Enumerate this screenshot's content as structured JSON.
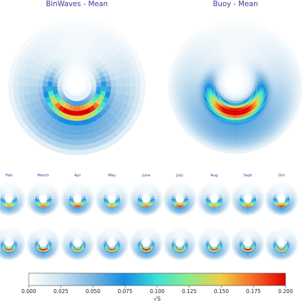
{
  "chart_data": {
    "type": "heatmap",
    "projection": "polar",
    "titles": {
      "binwaves": "BinWaves - Mean",
      "buoy": "Buoy - Mean"
    },
    "month_labels": [
      "Feb",
      "March",
      "Apr",
      "May",
      "June",
      "July",
      "Aug",
      "Sept",
      "Oct"
    ],
    "colorbar": {
      "label": "√S",
      "range": [
        0.0,
        0.2
      ],
      "ticks": [
        "0.000",
        "0.025",
        "0.050",
        "0.075",
        "0.100",
        "0.125",
        "0.150",
        "0.175",
        "0.200"
      ],
      "colormap": "rainbow-white-start"
    },
    "rows": [
      {
        "name": "BinWaves - Mean",
        "resolution": "coarse"
      },
      {
        "name": "Buoy - Mean",
        "resolution": "fine"
      }
    ],
    "peak_value": 0.19,
    "colors": {
      "title": "#3b3b9a",
      "white_core": "#ffffff"
    }
  }
}
